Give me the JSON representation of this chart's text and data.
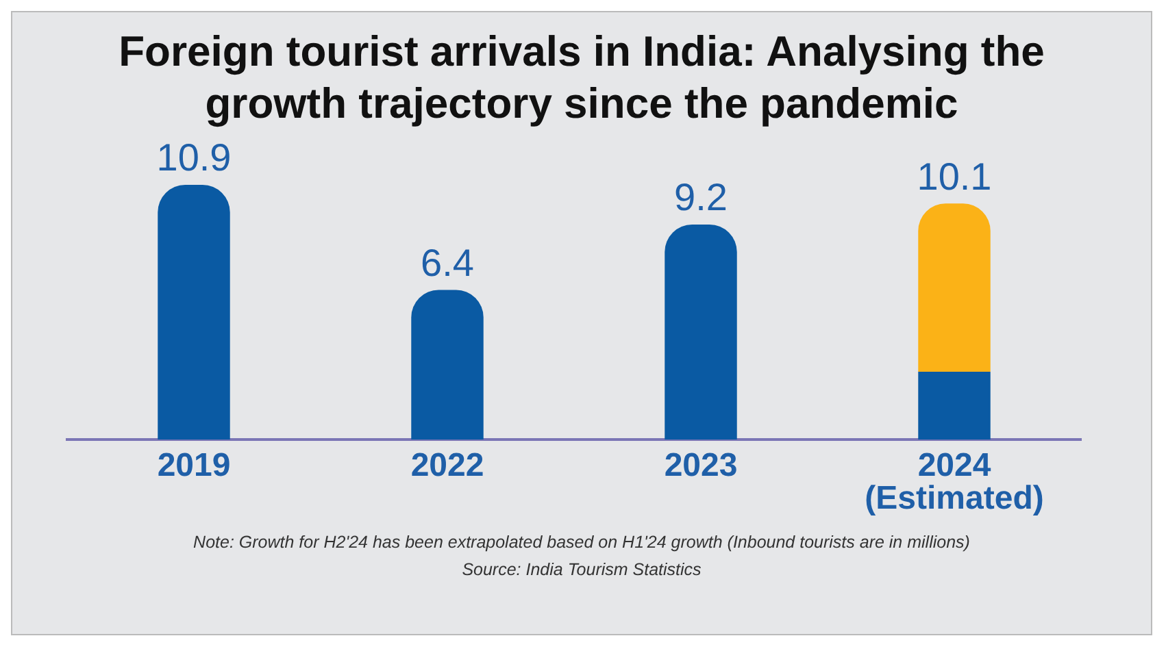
{
  "chart_data": {
    "type": "bar",
    "title": "Foreign tourist arrivals in India: Analysing the growth trajectory since the pandemic",
    "categories": [
      "2019",
      "2022",
      "2023",
      "2024 (Estimated)"
    ],
    "stacked": true,
    "series": [
      {
        "color": "#0a5aa3",
        "values": [
          10.9,
          6.4,
          9.2,
          2.9
        ],
        "value_labels": [
          "10.9",
          "6.4",
          "9.2",
          null
        ]
      },
      {
        "color": "#fbb217",
        "values": [
          null,
          null,
          null,
          7.2
        ]
      }
    ],
    "totals": [
      null,
      null,
      null,
      "10.1"
    ],
    "legend": false,
    "grid": false,
    "annotations": [
      "Note: Growth for H2'24 has been extrapolated based on H1'24 growth (Inbound tourists are in millions)",
      "Source: India Tourism Statistics"
    ]
  }
}
